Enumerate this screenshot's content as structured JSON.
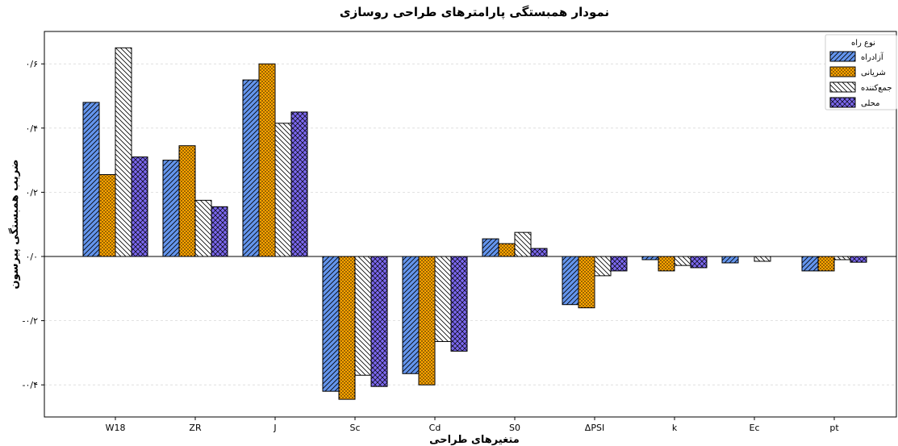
{
  "chart_data": {
    "type": "bar",
    "title": "نمودار همبستگی پارامترهای طراحی روسازی",
    "xlabel": "متغیرهای طراحی",
    "ylabel": "ضریب همبستگی پیرسون",
    "categories": [
      "W18",
      "ZR",
      "J",
      "Sc",
      "Cd",
      "S0",
      "ΔPSI",
      "k",
      "Ec",
      "pt"
    ],
    "yticks": [
      -0.4,
      -0.2,
      0.0,
      0.2,
      0.4,
      0.6
    ],
    "ytick_labels": [
      "-۰/۴",
      "-۰/۲",
      "۰/۰",
      "۰/۲",
      "۰/۴",
      "۰/۶"
    ],
    "ylim": [
      -0.5,
      0.7
    ],
    "grid": true,
    "legend_title": "نوع راه",
    "legend_position": "top-right",
    "series": [
      {
        "name": "آزادراه",
        "color": "#6495ED",
        "hatch": "diagonal",
        "values": [
          0.48,
          0.3,
          0.55,
          -0.42,
          -0.365,
          0.055,
          -0.15,
          -0.01,
          -0.02,
          -0.045
        ]
      },
      {
        "name": "شریانی",
        "color": "#FFA500",
        "hatch": "dots",
        "values": [
          0.255,
          0.345,
          0.6,
          -0.445,
          -0.4,
          0.04,
          -0.16,
          -0.045,
          0.0,
          -0.045
        ]
      },
      {
        "name": "جمع‌کننده",
        "color": "#FFFFFF",
        "hatch": "backdiagonal",
        "values": [
          0.65,
          0.175,
          0.415,
          -0.37,
          -0.265,
          0.075,
          -0.06,
          -0.028,
          -0.015,
          -0.01
        ]
      },
      {
        "name": "محلی",
        "color": "#7B68EE",
        "hatch": "crosshatch",
        "values": [
          0.31,
          0.155,
          0.45,
          -0.405,
          -0.295,
          0.025,
          -0.045,
          -0.035,
          0.0,
          -0.018
        ]
      }
    ]
  }
}
